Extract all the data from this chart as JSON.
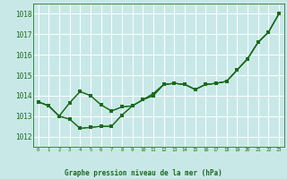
{
  "background_color": "#c8e8e8",
  "grid_color": "#ffffff",
  "line_color": "#1a6b1a",
  "marker_color": "#1a6b1a",
  "title": "Graphe pression niveau de la mer (hPa)",
  "xlim": [
    -0.5,
    23.5
  ],
  "ylim": [
    1011.5,
    1018.5
  ],
  "yticks": [
    1012,
    1013,
    1014,
    1015,
    1016,
    1017,
    1018
  ],
  "xticks": [
    0,
    1,
    2,
    3,
    4,
    5,
    6,
    7,
    8,
    9,
    10,
    11,
    12,
    13,
    14,
    15,
    16,
    17,
    18,
    19,
    20,
    21,
    22,
    23
  ],
  "series": [
    [
      1013.7,
      1013.5,
      1013.0,
      1012.85,
      1012.4,
      1012.45,
      1012.5,
      1012.5,
      1013.05,
      1013.5,
      1013.8,
      1014.0,
      1014.55,
      1014.6,
      1014.55,
      1014.3,
      1014.55,
      1014.6,
      1014.7,
      1015.25,
      1015.8,
      1016.6,
      1017.1,
      1018.0
    ],
    [
      1013.7,
      1013.5,
      1013.0,
      1012.85,
      1012.4,
      1012.45,
      1012.5,
      1012.5,
      1013.05,
      1013.5,
      1013.8,
      1014.0,
      1014.55,
      1014.6,
      1014.55,
      1014.3,
      1014.55,
      1014.6,
      1014.7,
      1015.25,
      1015.8,
      1016.6,
      1017.1,
      1018.0
    ],
    [
      1013.7,
      1013.5,
      1013.0,
      1013.65,
      1014.2,
      1014.0,
      1013.55,
      1013.25,
      1013.45,
      1013.5,
      1013.8,
      1014.1,
      1014.55,
      1014.6,
      1014.55,
      1014.3,
      1014.55,
      1014.6,
      1014.7,
      1015.25,
      1015.8,
      1016.6,
      1017.1,
      1018.0
    ],
    [
      1013.7,
      1013.5,
      1013.0,
      1013.65,
      1014.2,
      1014.0,
      1013.55,
      1013.25,
      1013.45,
      1013.5,
      1013.8,
      1014.1,
      1014.55,
      1014.6,
      1014.55,
      1014.3,
      1014.55,
      1014.6,
      1014.7,
      1015.25,
      1015.8,
      1016.6,
      1017.1,
      1018.0
    ]
  ],
  "has_markers": [
    true,
    false,
    false,
    true
  ]
}
